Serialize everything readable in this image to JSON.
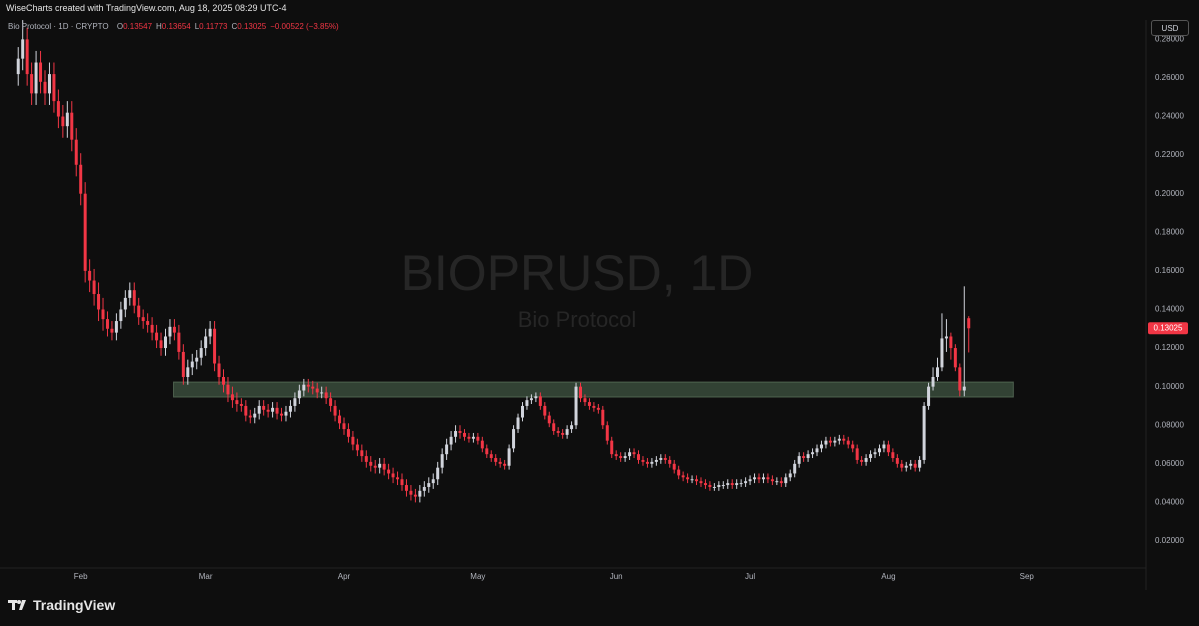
{
  "header": {
    "credit": "WiseCharts created with TradingView.com, Aug 18, 2025 08:29 UTC-4",
    "symbol": "Bio Protocol · 1D · CRYPTO",
    "ohlc": [
      {
        "key": "O",
        "value": "0.13547"
      },
      {
        "key": "H",
        "value": "0.13654"
      },
      {
        "key": "L",
        "value": "0.11773"
      },
      {
        "key": "C",
        "value": "0.13025"
      }
    ],
    "change": "−0.00522 (−3.85%)"
  },
  "footer": {
    "brand": "TradingView"
  },
  "chart_data": {
    "type": "candlestick",
    "currency": "USD",
    "watermark": {
      "title": "BIOPRUSD, 1D",
      "subtitle": "Bio Protocol"
    },
    "colors": {
      "up": "#d1d4dc",
      "down": "#f23645"
    },
    "grid": false,
    "ylim": [
      0.006,
      0.289
    ],
    "yticks": [
      {
        "value": 0.02,
        "label": "0.02000"
      },
      {
        "value": 0.04,
        "label": "0.04000"
      },
      {
        "value": 0.06,
        "label": "0.06000"
      },
      {
        "value": 0.08,
        "label": "0.08000"
      },
      {
        "value": 0.1,
        "label": "0.10000"
      },
      {
        "value": 0.12,
        "label": "0.12000"
      },
      {
        "value": 0.14,
        "label": "0.14000"
      },
      {
        "value": 0.16,
        "label": "0.16000"
      },
      {
        "value": 0.18,
        "label": "0.18000"
      },
      {
        "value": 0.2,
        "label": "0.20000"
      },
      {
        "value": 0.22,
        "label": "0.22000"
      },
      {
        "value": 0.24,
        "label": "0.24000"
      },
      {
        "value": 0.26,
        "label": "0.26000"
      },
      {
        "value": 0.28,
        "label": "0.28000"
      }
    ],
    "xlim": [
      -0.5,
      252.5
    ],
    "xticks": [
      {
        "value": 14,
        "label": "Feb"
      },
      {
        "value": 42,
        "label": "Mar"
      },
      {
        "value": 73,
        "label": "Apr"
      },
      {
        "value": 103,
        "label": "May"
      },
      {
        "value": 134,
        "label": "Jun"
      },
      {
        "value": 164,
        "label": "Jul"
      },
      {
        "value": 195,
        "label": "Aug"
      },
      {
        "value": 226,
        "label": "Sep"
      }
    ],
    "zone": {
      "x0": 34.8,
      "x1": 223,
      "y0": 0.0946,
      "y1": 0.1024,
      "color": "rgba(96,130,100,0.45)"
    },
    "price_label": {
      "value": 0.13025,
      "label": "0.13025"
    },
    "open": [
      0.262,
      0.27,
      0.28,
      0.262,
      0.252,
      0.268,
      0.258,
      0.252,
      0.262,
      0.248,
      0.24,
      0.235,
      0.242,
      0.228,
      0.215,
      0.2,
      0.16,
      0.155,
      0.148,
      0.14,
      0.135,
      0.13,
      0.128,
      0.134,
      0.14,
      0.146,
      0.15,
      0.142,
      0.136,
      0.134,
      0.132,
      0.128,
      0.124,
      0.12,
      0.126,
      0.131,
      0.128,
      0.118,
      0.105,
      0.11,
      0.113,
      0.115,
      0.12,
      0.126,
      0.13,
      0.112,
      0.105,
      0.101,
      0.096,
      0.093,
      0.091,
      0.09,
      0.085,
      0.084,
      0.086,
      0.09,
      0.088,
      0.087,
      0.089,
      0.086,
      0.085,
      0.087,
      0.09,
      0.094,
      0.098,
      0.101,
      0.1,
      0.099,
      0.097,
      0.097,
      0.094,
      0.09,
      0.085,
      0.081,
      0.078,
      0.074,
      0.07,
      0.067,
      0.064,
      0.061,
      0.059,
      0.058,
      0.06,
      0.057,
      0.055,
      0.053,
      0.052,
      0.049,
      0.046,
      0.044,
      0.043,
      0.046,
      0.048,
      0.05,
      0.052,
      0.058,
      0.065,
      0.07,
      0.074,
      0.077,
      0.076,
      0.074,
      0.073,
      0.074,
      0.072,
      0.068,
      0.065,
      0.063,
      0.061,
      0.06,
      0.059,
      0.068,
      0.078,
      0.084,
      0.09,
      0.093,
      0.094,
      0.095,
      0.09,
      0.085,
      0.081,
      0.077,
      0.076,
      0.075,
      0.078,
      0.08,
      0.1,
      0.094,
      0.092,
      0.09,
      0.089,
      0.088,
      0.08,
      0.072,
      0.065,
      0.064,
      0.063,
      0.064,
      0.066,
      0.065,
      0.062,
      0.061,
      0.06,
      0.061,
      0.062,
      0.063,
      0.062,
      0.06,
      0.057,
      0.054,
      0.053,
      0.052,
      0.052,
      0.051,
      0.05,
      0.049,
      0.048,
      0.048,
      0.049,
      0.049,
      0.05,
      0.049,
      0.05,
      0.05,
      0.051,
      0.052,
      0.053,
      0.052,
      0.053,
      0.052,
      0.051,
      0.051,
      0.05,
      0.053,
      0.055,
      0.06,
      0.064,
      0.063,
      0.065,
      0.066,
      0.068,
      0.07,
      0.072,
      0.071,
      0.072,
      0.073,
      0.072,
      0.07,
      0.068,
      0.062,
      0.061,
      0.063,
      0.065,
      0.066,
      0.068,
      0.07,
      0.066,
      0.063,
      0.06,
      0.058,
      0.059,
      0.06,
      0.058,
      0.062,
      0.09,
      0.1,
      0.105,
      0.11,
      0.125,
      0.126,
      0.12,
      0.11,
      0.098,
      0.13547
    ],
    "high": [
      0.276,
      0.29,
      0.286,
      0.268,
      0.274,
      0.274,
      0.264,
      0.268,
      0.268,
      0.254,
      0.246,
      0.248,
      0.248,
      0.234,
      0.221,
      0.206,
      0.166,
      0.161,
      0.154,
      0.146,
      0.139,
      0.134,
      0.138,
      0.144,
      0.15,
      0.154,
      0.154,
      0.146,
      0.14,
      0.138,
      0.136,
      0.132,
      0.128,
      0.13,
      0.135,
      0.135,
      0.132,
      0.122,
      0.114,
      0.117,
      0.119,
      0.124,
      0.13,
      0.134,
      0.134,
      0.116,
      0.109,
      0.105,
      0.1,
      0.097,
      0.094,
      0.093,
      0.088,
      0.089,
      0.093,
      0.093,
      0.091,
      0.092,
      0.092,
      0.089,
      0.09,
      0.093,
      0.097,
      0.101,
      0.104,
      0.104,
      0.103,
      0.102,
      0.1,
      0.1,
      0.097,
      0.093,
      0.088,
      0.084,
      0.081,
      0.077,
      0.073,
      0.07,
      0.067,
      0.064,
      0.062,
      0.063,
      0.063,
      0.06,
      0.058,
      0.056,
      0.055,
      0.052,
      0.049,
      0.047,
      0.049,
      0.051,
      0.053,
      0.055,
      0.061,
      0.068,
      0.073,
      0.077,
      0.08,
      0.08,
      0.078,
      0.076,
      0.076,
      0.076,
      0.074,
      0.07,
      0.067,
      0.065,
      0.063,
      0.062,
      0.07,
      0.08,
      0.086,
      0.092,
      0.095,
      0.096,
      0.097,
      0.097,
      0.092,
      0.087,
      0.083,
      0.079,
      0.078,
      0.08,
      0.082,
      0.102,
      0.102,
      0.096,
      0.094,
      0.092,
      0.091,
      0.09,
      0.082,
      0.074,
      0.067,
      0.066,
      0.066,
      0.068,
      0.068,
      0.067,
      0.064,
      0.063,
      0.063,
      0.064,
      0.065,
      0.065,
      0.064,
      0.062,
      0.059,
      0.056,
      0.055,
      0.054,
      0.054,
      0.053,
      0.052,
      0.051,
      0.05,
      0.051,
      0.051,
      0.052,
      0.052,
      0.052,
      0.052,
      0.053,
      0.054,
      0.055,
      0.055,
      0.055,
      0.055,
      0.054,
      0.053,
      0.053,
      0.055,
      0.057,
      0.062,
      0.066,
      0.066,
      0.067,
      0.068,
      0.07,
      0.072,
      0.074,
      0.074,
      0.074,
      0.075,
      0.075,
      0.074,
      0.072,
      0.07,
      0.064,
      0.065,
      0.067,
      0.068,
      0.07,
      0.072,
      0.072,
      0.068,
      0.065,
      0.062,
      0.061,
      0.062,
      0.062,
      0.064,
      0.092,
      0.102,
      0.11,
      0.115,
      0.138,
      0.135,
      0.128,
      0.122,
      0.112,
      0.152,
      0.13654
    ],
    "low": [
      0.256,
      0.264,
      0.256,
      0.246,
      0.246,
      0.252,
      0.246,
      0.246,
      0.242,
      0.234,
      0.229,
      0.229,
      0.222,
      0.209,
      0.194,
      0.154,
      0.149,
      0.142,
      0.134,
      0.129,
      0.126,
      0.124,
      0.124,
      0.13,
      0.136,
      0.142,
      0.138,
      0.132,
      0.13,
      0.128,
      0.124,
      0.12,
      0.116,
      0.116,
      0.122,
      0.124,
      0.114,
      0.101,
      0.101,
      0.106,
      0.109,
      0.111,
      0.116,
      0.122,
      0.108,
      0.101,
      0.097,
      0.092,
      0.089,
      0.087,
      0.087,
      0.082,
      0.081,
      0.081,
      0.083,
      0.085,
      0.084,
      0.084,
      0.083,
      0.082,
      0.082,
      0.084,
      0.087,
      0.091,
      0.095,
      0.097,
      0.096,
      0.094,
      0.094,
      0.091,
      0.087,
      0.082,
      0.078,
      0.075,
      0.071,
      0.067,
      0.064,
      0.061,
      0.058,
      0.056,
      0.055,
      0.055,
      0.054,
      0.052,
      0.05,
      0.049,
      0.046,
      0.043,
      0.041,
      0.04,
      0.04,
      0.043,
      0.045,
      0.047,
      0.049,
      0.055,
      0.062,
      0.067,
      0.071,
      0.073,
      0.072,
      0.071,
      0.071,
      0.07,
      0.066,
      0.063,
      0.061,
      0.059,
      0.058,
      0.057,
      0.057,
      0.066,
      0.076,
      0.082,
      0.088,
      0.091,
      0.092,
      0.088,
      0.083,
      0.079,
      0.075,
      0.074,
      0.073,
      0.073,
      0.076,
      0.078,
      0.092,
      0.09,
      0.088,
      0.087,
      0.086,
      0.078,
      0.07,
      0.063,
      0.062,
      0.061,
      0.061,
      0.062,
      0.063,
      0.06,
      0.059,
      0.058,
      0.058,
      0.059,
      0.06,
      0.06,
      0.058,
      0.055,
      0.052,
      0.051,
      0.05,
      0.05,
      0.049,
      0.048,
      0.047,
      0.046,
      0.046,
      0.046,
      0.047,
      0.047,
      0.047,
      0.047,
      0.048,
      0.048,
      0.049,
      0.05,
      0.05,
      0.05,
      0.05,
      0.049,
      0.049,
      0.048,
      0.048,
      0.051,
      0.053,
      0.058,
      0.061,
      0.061,
      0.063,
      0.064,
      0.066,
      0.068,
      0.069,
      0.069,
      0.07,
      0.07,
      0.068,
      0.066,
      0.06,
      0.059,
      0.059,
      0.061,
      0.063,
      0.064,
      0.066,
      0.064,
      0.061,
      0.058,
      0.056,
      0.056,
      0.057,
      0.056,
      0.056,
      0.06,
      0.088,
      0.098,
      0.103,
      0.108,
      0.118,
      0.114,
      0.108,
      0.095,
      0.095,
      0.11773
    ],
    "close": [
      0.27,
      0.28,
      0.262,
      0.252,
      0.268,
      0.258,
      0.252,
      0.262,
      0.248,
      0.24,
      0.235,
      0.242,
      0.228,
      0.215,
      0.2,
      0.16,
      0.155,
      0.148,
      0.14,
      0.135,
      0.13,
      0.128,
      0.134,
      0.14,
      0.146,
      0.15,
      0.142,
      0.136,
      0.134,
      0.132,
      0.128,
      0.124,
      0.12,
      0.126,
      0.131,
      0.128,
      0.118,
      0.105,
      0.11,
      0.113,
      0.115,
      0.12,
      0.126,
      0.13,
      0.112,
      0.105,
      0.101,
      0.096,
      0.093,
      0.091,
      0.09,
      0.085,
      0.084,
      0.086,
      0.09,
      0.088,
      0.087,
      0.089,
      0.086,
      0.085,
      0.087,
      0.09,
      0.094,
      0.098,
      0.101,
      0.1,
      0.099,
      0.097,
      0.097,
      0.094,
      0.09,
      0.085,
      0.081,
      0.078,
      0.074,
      0.07,
      0.067,
      0.064,
      0.061,
      0.059,
      0.058,
      0.06,
      0.057,
      0.055,
      0.053,
      0.052,
      0.049,
      0.046,
      0.044,
      0.043,
      0.046,
      0.048,
      0.05,
      0.052,
      0.058,
      0.065,
      0.07,
      0.074,
      0.077,
      0.076,
      0.074,
      0.073,
      0.074,
      0.072,
      0.068,
      0.065,
      0.063,
      0.061,
      0.06,
      0.059,
      0.068,
      0.078,
      0.084,
      0.09,
      0.093,
      0.094,
      0.095,
      0.09,
      0.085,
      0.081,
      0.077,
      0.076,
      0.075,
      0.078,
      0.08,
      0.1,
      0.094,
      0.092,
      0.09,
      0.089,
      0.088,
      0.08,
      0.072,
      0.065,
      0.064,
      0.063,
      0.064,
      0.066,
      0.065,
      0.062,
      0.061,
      0.06,
      0.061,
      0.062,
      0.063,
      0.062,
      0.06,
      0.057,
      0.054,
      0.053,
      0.052,
      0.052,
      0.051,
      0.05,
      0.049,
      0.048,
      0.048,
      0.049,
      0.049,
      0.05,
      0.049,
      0.05,
      0.05,
      0.051,
      0.052,
      0.053,
      0.052,
      0.053,
      0.052,
      0.051,
      0.051,
      0.05,
      0.053,
      0.055,
      0.06,
      0.064,
      0.063,
      0.065,
      0.066,
      0.068,
      0.07,
      0.072,
      0.071,
      0.072,
      0.073,
      0.072,
      0.07,
      0.068,
      0.062,
      0.061,
      0.063,
      0.065,
      0.066,
      0.068,
      0.07,
      0.066,
      0.063,
      0.06,
      0.058,
      0.059,
      0.06,
      0.058,
      0.062,
      0.09,
      0.1,
      0.105,
      0.11,
      0.125,
      0.126,
      0.12,
      0.11,
      0.098,
      0.1,
      0.13025
    ]
  }
}
